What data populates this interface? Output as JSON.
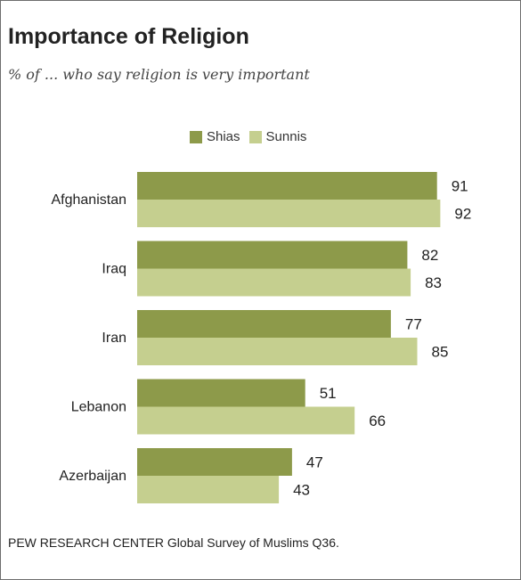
{
  "title": "Importance of Religion",
  "subtitle": "% of ... who say religion is very important",
  "source": "PEW RESEARCH CENTER Global Survey of Muslims Q36.",
  "colors": {
    "shias": "#8d9a4a",
    "sunnis": "#c5cf8f",
    "frame": "#6e6e6e"
  },
  "chart_data": {
    "type": "bar",
    "orientation": "horizontal",
    "categories": [
      "Afghanistan",
      "Iraq",
      "Iran",
      "Lebanon",
      "Azerbaijan"
    ],
    "series": [
      {
        "name": "Shias",
        "values": [
          91,
          82,
          77,
          51,
          47
        ]
      },
      {
        "name": "Sunnis",
        "values": [
          92,
          83,
          85,
          66,
          43
        ]
      }
    ],
    "xlim": [
      0,
      100
    ],
    "grid": false,
    "legend_position": "top"
  }
}
